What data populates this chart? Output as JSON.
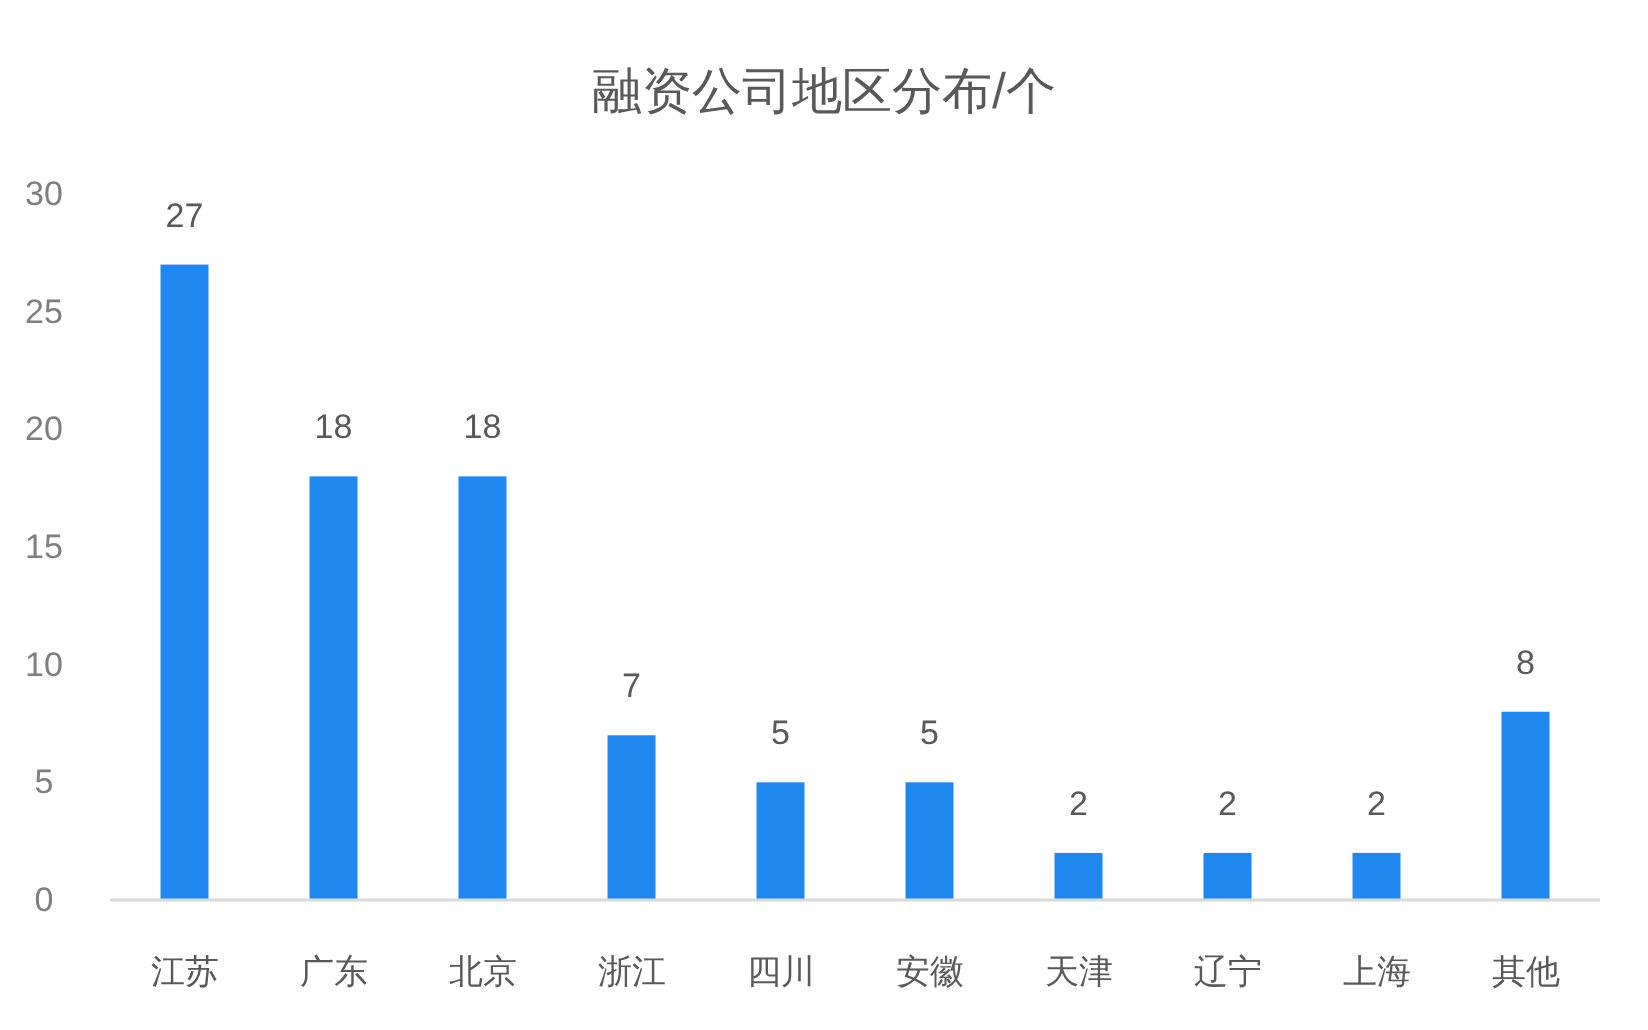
{
  "chart_data": {
    "type": "bar",
    "title": "融资公司地区分布/个",
    "categories": [
      "江苏",
      "广东",
      "北京",
      "浙江",
      "四川",
      "安徽",
      "天津",
      "辽宁",
      "上海",
      "其他"
    ],
    "values": [
      27,
      18,
      18,
      7,
      5,
      5,
      2,
      2,
      2,
      8
    ],
    "color": "#1e88f0",
    "ylim": [
      0,
      30
    ],
    "yticks": [
      0,
      5,
      10,
      15,
      20,
      25,
      30
    ],
    "data_labels": true
  }
}
